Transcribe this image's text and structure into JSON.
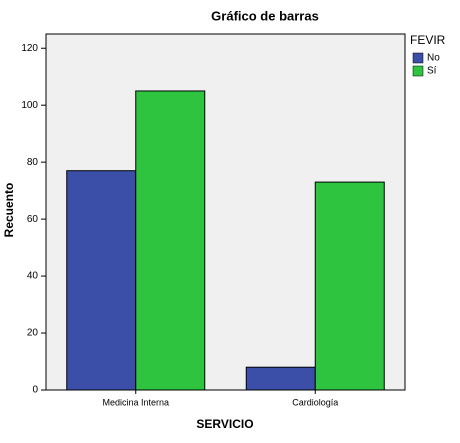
{
  "chart_data": {
    "type": "bar",
    "title": "Gráfico de barras",
    "x_label": "SERVICIO",
    "y_label": "Recuento",
    "legend_title": "FEVIR",
    "categories": [
      "Medicina Interna",
      "Cardiología"
    ],
    "series": [
      {
        "name": "No",
        "color": "#3c4fa8",
        "values": [
          77,
          8
        ]
      },
      {
        "name": "Sí",
        "color": "#2fc43f",
        "values": [
          105,
          73
        ]
      }
    ],
    "ylim": [
      0,
      125
    ],
    "yticks": [
      0,
      20,
      40,
      60,
      80,
      100,
      120
    ],
    "grid": false,
    "legend": "right"
  }
}
